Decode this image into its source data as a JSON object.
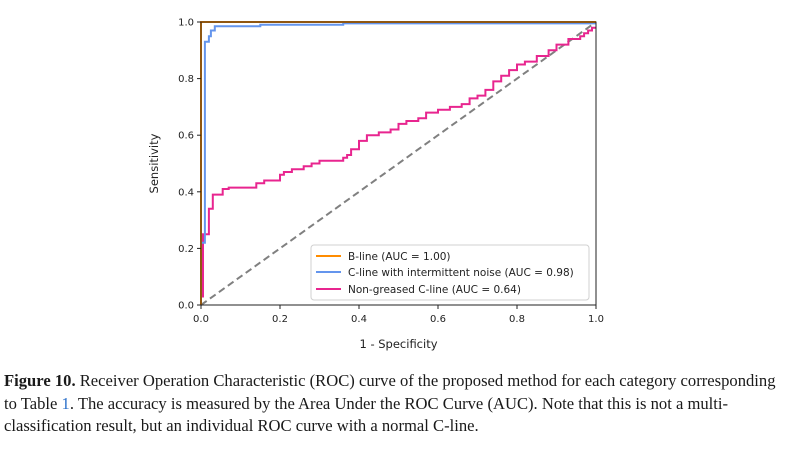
{
  "chart_data": {
    "type": "line",
    "xlabel": "1 - Specificity",
    "ylabel": "Sensitivity",
    "xlim": [
      0,
      1
    ],
    "ylim": [
      0,
      1
    ],
    "xticks": [
      "0.0",
      "0.2",
      "0.4",
      "0.6",
      "0.8",
      "1.0"
    ],
    "yticks": [
      "0.0",
      "0.2",
      "0.4",
      "0.6",
      "0.8",
      "1.0"
    ],
    "grid": false,
    "legend_position": "lower-right",
    "series": [
      {
        "name": "B-line (AUC = 1.00)",
        "color": "#ff8c00",
        "points": [
          [
            0,
            0
          ],
          [
            0,
            1.0
          ],
          [
            1.0,
            1.0
          ]
        ]
      },
      {
        "name": "C-line with intermittent noise (AUC = 0.98)",
        "color": "#6495ed",
        "points": [
          [
            0,
            0
          ],
          [
            0,
            0.22
          ],
          [
            0.01,
            0.22
          ],
          [
            0.01,
            0.93
          ],
          [
            0.02,
            0.93
          ],
          [
            0.02,
            0.95
          ],
          [
            0.025,
            0.95
          ],
          [
            0.025,
            0.97
          ],
          [
            0.035,
            0.97
          ],
          [
            0.035,
            0.985
          ],
          [
            0.15,
            0.985
          ],
          [
            0.15,
            0.99
          ],
          [
            0.36,
            0.99
          ],
          [
            0.36,
            0.995
          ],
          [
            1.0,
            0.995
          ]
        ]
      },
      {
        "name": "Non-greased C-line (AUC = 0.64)",
        "color": "#e8258f",
        "points": [
          [
            0,
            0
          ],
          [
            0,
            0.03
          ],
          [
            0.005,
            0.03
          ],
          [
            0.005,
            0.25
          ],
          [
            0.02,
            0.25
          ],
          [
            0.02,
            0.34
          ],
          [
            0.03,
            0.34
          ],
          [
            0.03,
            0.39
          ],
          [
            0.055,
            0.39
          ],
          [
            0.055,
            0.41
          ],
          [
            0.07,
            0.41
          ],
          [
            0.07,
            0.415
          ],
          [
            0.14,
            0.415
          ],
          [
            0.14,
            0.43
          ],
          [
            0.16,
            0.43
          ],
          [
            0.16,
            0.44
          ],
          [
            0.2,
            0.44
          ],
          [
            0.2,
            0.46
          ],
          [
            0.21,
            0.46
          ],
          [
            0.21,
            0.47
          ],
          [
            0.23,
            0.47
          ],
          [
            0.23,
            0.48
          ],
          [
            0.26,
            0.48
          ],
          [
            0.26,
            0.49
          ],
          [
            0.28,
            0.49
          ],
          [
            0.28,
            0.5
          ],
          [
            0.3,
            0.5
          ],
          [
            0.3,
            0.51
          ],
          [
            0.36,
            0.51
          ],
          [
            0.36,
            0.52
          ],
          [
            0.37,
            0.52
          ],
          [
            0.37,
            0.53
          ],
          [
            0.38,
            0.53
          ],
          [
            0.38,
            0.55
          ],
          [
            0.4,
            0.55
          ],
          [
            0.4,
            0.58
          ],
          [
            0.42,
            0.58
          ],
          [
            0.42,
            0.6
          ],
          [
            0.45,
            0.6
          ],
          [
            0.45,
            0.61
          ],
          [
            0.48,
            0.61
          ],
          [
            0.48,
            0.62
          ],
          [
            0.5,
            0.62
          ],
          [
            0.5,
            0.64
          ],
          [
            0.52,
            0.64
          ],
          [
            0.52,
            0.65
          ],
          [
            0.55,
            0.65
          ],
          [
            0.55,
            0.66
          ],
          [
            0.57,
            0.66
          ],
          [
            0.57,
            0.68
          ],
          [
            0.6,
            0.68
          ],
          [
            0.6,
            0.69
          ],
          [
            0.63,
            0.69
          ],
          [
            0.63,
            0.7
          ],
          [
            0.66,
            0.7
          ],
          [
            0.66,
            0.71
          ],
          [
            0.68,
            0.71
          ],
          [
            0.68,
            0.73
          ],
          [
            0.7,
            0.73
          ],
          [
            0.7,
            0.74
          ],
          [
            0.72,
            0.74
          ],
          [
            0.72,
            0.76
          ],
          [
            0.74,
            0.76
          ],
          [
            0.74,
            0.79
          ],
          [
            0.76,
            0.79
          ],
          [
            0.76,
            0.81
          ],
          [
            0.78,
            0.81
          ],
          [
            0.78,
            0.83
          ],
          [
            0.8,
            0.83
          ],
          [
            0.8,
            0.85
          ],
          [
            0.82,
            0.85
          ],
          [
            0.82,
            0.86
          ],
          [
            0.85,
            0.86
          ],
          [
            0.85,
            0.88
          ],
          [
            0.88,
            0.88
          ],
          [
            0.88,
            0.9
          ],
          [
            0.9,
            0.9
          ],
          [
            0.9,
            0.92
          ],
          [
            0.93,
            0.92
          ],
          [
            0.93,
            0.94
          ],
          [
            0.96,
            0.94
          ],
          [
            0.96,
            0.95
          ],
          [
            0.97,
            0.95
          ],
          [
            0.97,
            0.96
          ],
          [
            0.98,
            0.96
          ],
          [
            0.98,
            0.97
          ],
          [
            0.99,
            0.97
          ],
          [
            0.99,
            0.98
          ],
          [
            1.0,
            0.98
          ]
        ]
      },
      {
        "name": "",
        "color": "#808080",
        "style": "dashed",
        "points": [
          [
            0,
            0
          ],
          [
            1,
            1
          ]
        ]
      }
    ]
  },
  "caption": {
    "label": "Figure 10.",
    "text_before_ref": " Receiver Operation Characteristic (ROC) curve of the proposed method for each category corresponding to Table ",
    "ref": "1",
    "text_after_ref": ". The accuracy is measured by the Area Under the ROC Curve (AUC). Note that this is not a multi-classification result, but an individual ROC curve with a normal C-line."
  }
}
